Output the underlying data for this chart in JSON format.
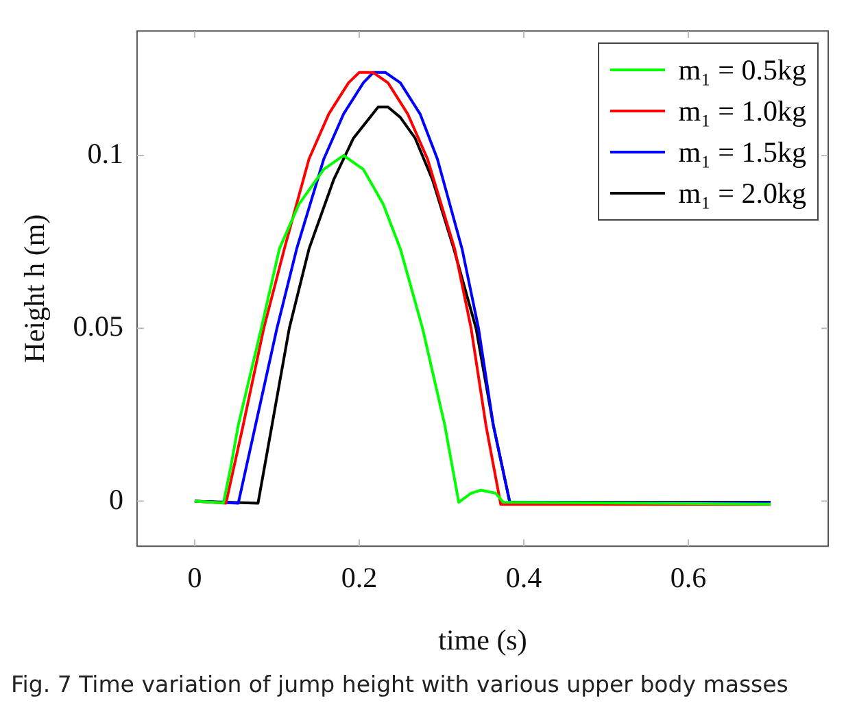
{
  "chart_data": {
    "type": "line",
    "xlabel": "time (s)",
    "ylabel": "Height h (m)",
    "annotations": [
      "Fig. 7  Time variation of jump height with various upper body masses"
    ],
    "xlim": [
      -0.07,
      0.77
    ],
    "xticks": [
      0,
      0.2,
      0.4,
      0.6
    ],
    "ylim": [
      -0.013,
      0.136
    ],
    "yticks": [
      0,
      0.05,
      0.1
    ],
    "grid": false,
    "legend": "top right",
    "marker": "none",
    "line_style": "solid",
    "series": [
      {
        "name": "m₁ = 0.5kg",
        "color": "#00ff00",
        "x": [
          0,
          0.035,
          0.044,
          0.053,
          0.081,
          0.103,
          0.127,
          0.157,
          0.181,
          0.205,
          0.229,
          0.25,
          0.277,
          0.304,
          0.321,
          0.336,
          0.348,
          0.366,
          0.375,
          0.7
        ],
        "values": [
          0,
          -0.0005,
          0.01,
          0.022,
          0.05,
          0.073,
          0.086,
          0.096,
          0.1,
          0.096,
          0.086,
          0.073,
          0.05,
          0.022,
          -0.0003,
          0.0023,
          0.0032,
          0.0023,
          -0.0003,
          -0.0008
        ]
      },
      {
        "name": "m₁ = 1.0kg",
        "color": "#ff0000",
        "x": [
          0,
          0.038,
          0.059,
          0.084,
          0.109,
          0.139,
          0.163,
          0.187,
          0.2,
          0.217,
          0.235,
          0.259,
          0.283,
          0.316,
          0.336,
          0.354,
          0.372,
          0.7
        ],
        "values": [
          0,
          -0.0006,
          0.022,
          0.05,
          0.073,
          0.099,
          0.112,
          0.121,
          0.124,
          0.124,
          0.121,
          0.112,
          0.099,
          0.073,
          0.05,
          0.022,
          -0.0009,
          -0.0009
        ]
      },
      {
        "name": "m₁ = 1.5kg",
        "color": "#0000ff",
        "x": [
          0,
          0.053,
          0.074,
          0.1,
          0.124,
          0.157,
          0.181,
          0.205,
          0.217,
          0.232,
          0.25,
          0.274,
          0.295,
          0.325,
          0.345,
          0.363,
          0.383,
          0.7
        ],
        "values": [
          0,
          -0.0006,
          0.022,
          0.05,
          0.073,
          0.099,
          0.112,
          0.121,
          0.124,
          0.124,
          0.121,
          0.112,
          0.099,
          0.073,
          0.05,
          0.022,
          -0.0003,
          -0.0005
        ]
      },
      {
        "name": "m₁ = 2.0kg",
        "color": "#000000",
        "x": [
          0,
          0.077,
          0.094,
          0.115,
          0.139,
          0.169,
          0.193,
          0.223,
          0.235,
          0.25,
          0.268,
          0.289,
          0.315,
          0.342,
          0.363,
          0.383,
          0.7
        ],
        "values": [
          0,
          -0.0006,
          0.022,
          0.05,
          0.073,
          0.093,
          0.105,
          0.114,
          0.114,
          0.111,
          0.105,
          0.093,
          0.073,
          0.05,
          0.022,
          -0.0003,
          -0.0003
        ]
      }
    ]
  }
}
